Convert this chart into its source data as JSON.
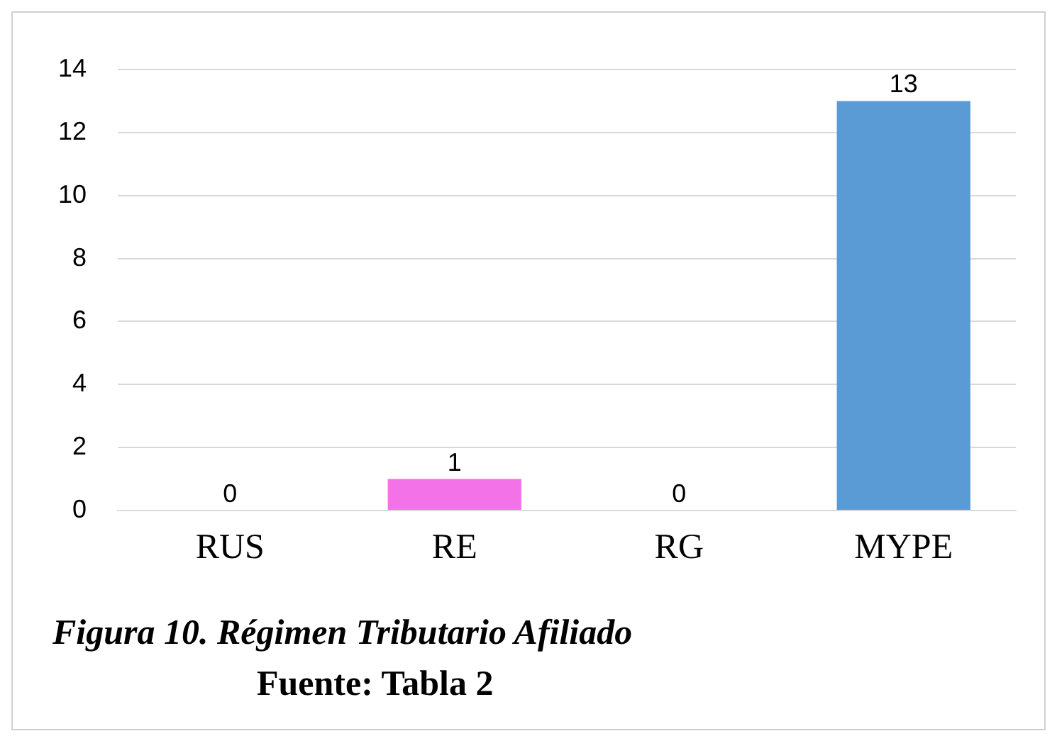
{
  "chart_data": {
    "type": "bar",
    "title": "Figura 10. Régimen Tributario Afiliado",
    "categories": [
      "RUS",
      "RE",
      "RG",
      "MYPE"
    ],
    "values": [
      0,
      1,
      0,
      13
    ],
    "colors": [
      "#3f6e9a",
      "#f472e8",
      "#3f6e9a",
      "#5b9bd5"
    ],
    "ylim": [
      0,
      14
    ],
    "yticks": [
      0,
      2,
      4,
      6,
      8,
      10,
      12,
      14
    ],
    "grid": "y",
    "data_labels": true,
    "legend": false,
    "annotations": [
      "Fuente: Tabla 2"
    ]
  }
}
